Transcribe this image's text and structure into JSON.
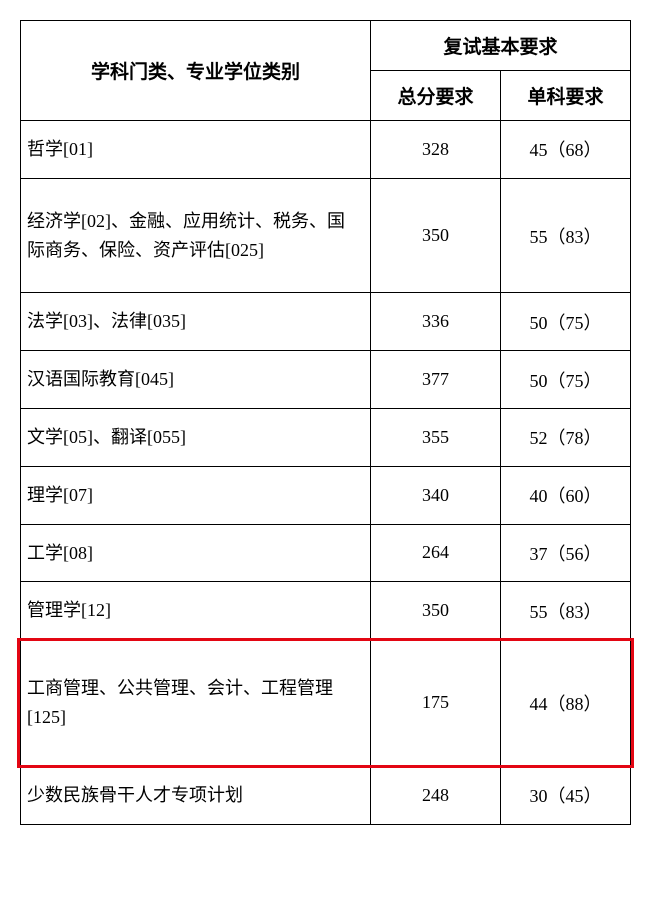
{
  "table": {
    "header": {
      "category_label": "学科门类、专业学位类别",
      "group_label": "复试基本要求",
      "total_label": "总分要求",
      "single_label": "单科要求"
    },
    "rows": [
      {
        "category": "哲学[01]",
        "total": "328",
        "single": "45（68）",
        "tall": false
      },
      {
        "category": "经济学[02]、金融、应用统计、税务、国际商务、保险、资产评估[025]",
        "total": "350",
        "single": "55（83）",
        "tall": true
      },
      {
        "category": "法学[03]、法律[035]",
        "total": "336",
        "single": "50（75）",
        "tall": false
      },
      {
        "category": "汉语国际教育[045]",
        "total": "377",
        "single": "50（75）",
        "tall": false
      },
      {
        "category": "文学[05]、翻译[055]",
        "total": "355",
        "single": "52（78）",
        "tall": false
      },
      {
        "category": "理学[07]",
        "total": "340",
        "single": "40（60）",
        "tall": false
      },
      {
        "category": "工学[08]",
        "total": "264",
        "single": "37（56）",
        "tall": false
      },
      {
        "category": "管理学[12]",
        "total": "350",
        "single": "55（83）",
        "tall": false
      },
      {
        "category": "工商管理、公共管理、会计、工程管理[125]",
        "total": "175",
        "single": "44（88）",
        "tall": true,
        "highlight": true
      },
      {
        "category": "少数民族骨干人才专项计划",
        "total": "248",
        "single": "30（45）",
        "tall": false
      }
    ],
    "colors": {
      "border": "#000000",
      "highlight_border": "#e30613",
      "background": "#ffffff",
      "text": "#000000"
    },
    "font": {
      "header_size_pt": 14,
      "body_size_pt": 13,
      "family": "SimSun"
    }
  }
}
